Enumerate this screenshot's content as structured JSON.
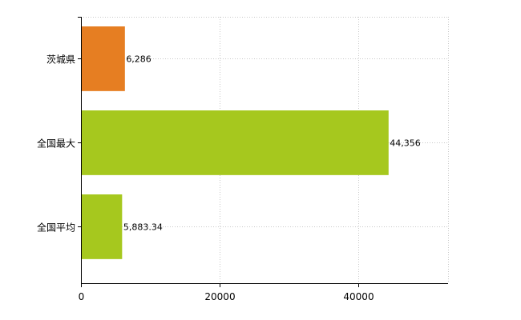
{
  "chart_data": {
    "type": "bar",
    "orientation": "horizontal",
    "categories": [
      "茨城県",
      "全国最大",
      "全国平均"
    ],
    "values": [
      6286,
      44356,
      5883.34
    ],
    "value_labels": [
      "6,286",
      "44,356",
      "5,883.34"
    ],
    "bar_colors": [
      "#e67e22",
      "#a6c81e",
      "#a6c81e"
    ],
    "xlim": [
      0,
      53000
    ],
    "xticks": [
      0,
      20000,
      40000
    ],
    "xtick_labels": [
      "0",
      "20000",
      "40000"
    ],
    "grid": true,
    "title": "",
    "xlabel": "",
    "ylabel": ""
  }
}
